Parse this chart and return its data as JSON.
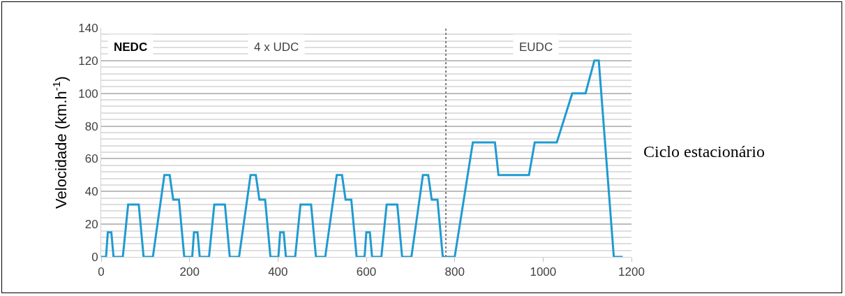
{
  "chart_data": {
    "type": "line",
    "ylabel": "Velocidade (km.h$^{-1}$)",
    "x": [
      0,
      11,
      15,
      23,
      28,
      49,
      61,
      85,
      96,
      117,
      143,
      155,
      163,
      176,
      188,
      195,
      206,
      210,
      218,
      223,
      244,
      256,
      280,
      291,
      312,
      338,
      350,
      358,
      371,
      383,
      390,
      401,
      405,
      413,
      418,
      439,
      451,
      475,
      486,
      507,
      533,
      545,
      553,
      566,
      578,
      585,
      596,
      600,
      608,
      613,
      634,
      646,
      670,
      681,
      702,
      728,
      740,
      748,
      761,
      773,
      780,
      800,
      841,
      891,
      899,
      968,
      981,
      1031,
      1066,
      1096,
      1116,
      1126,
      1160,
      1180
    ],
    "series": [
      {
        "color": "#1f9bd1",
        "values": [
          0,
          0,
          15,
          15,
          0,
          0,
          32,
          32,
          0,
          0,
          50,
          50,
          35,
          35,
          0,
          0,
          0,
          15,
          15,
          0,
          0,
          32,
          32,
          0,
          0,
          50,
          50,
          35,
          35,
          0,
          0,
          0,
          15,
          15,
          0,
          0,
          32,
          32,
          0,
          0,
          50,
          50,
          35,
          35,
          0,
          0,
          0,
          15,
          15,
          0,
          0,
          32,
          32,
          0,
          0,
          50,
          50,
          35,
          35,
          0,
          0,
          0,
          70,
          70,
          50,
          50,
          70,
          70,
          100,
          100,
          120,
          120,
          0,
          0
        ]
      }
    ],
    "xlim": [
      0,
      1200
    ],
    "xticks": [
      0,
      200,
      400,
      600,
      800,
      1000,
      1200
    ],
    "ylim": [
      0,
      140
    ],
    "yticks": [
      0,
      20,
      40,
      60,
      80,
      100,
      120,
      140
    ],
    "grid": "y",
    "marker": "none",
    "line_style": "solid",
    "ref_lines": [
      {
        "axis": "x",
        "value": 780,
        "color": "#7f7f7f",
        "line_style": "dotted"
      }
    ],
    "annotations": [
      "NEDC",
      "4 x UDC",
      "EUDC",
      "Ciclo estacionário"
    ]
  }
}
